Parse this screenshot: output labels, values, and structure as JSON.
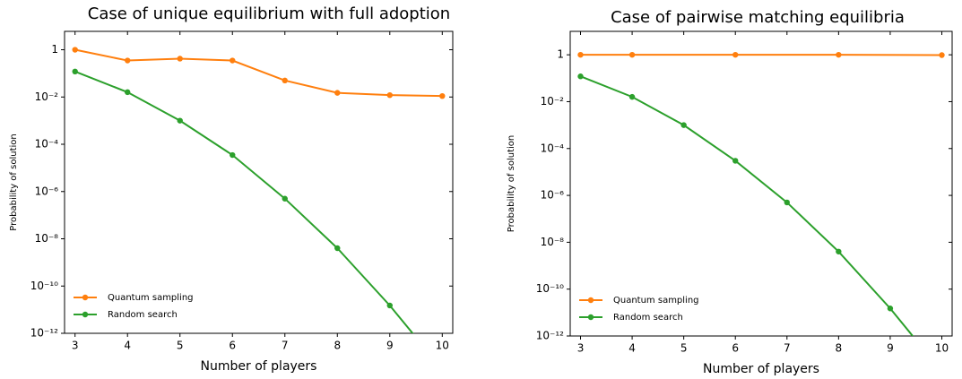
{
  "chart_data": [
    {
      "type": "line",
      "title": "Case of unique equilibrium with full adoption",
      "xlabel": "Number of players",
      "ylabel": "Probability of solution",
      "log_y": true,
      "legend": "lower left",
      "xlim": [
        2.8,
        10.2
      ],
      "ylim": [
        1e-12,
        6
      ],
      "xticks": [
        3,
        4,
        5,
        6,
        7,
        8,
        9,
        10
      ],
      "yticks": [
        {
          "value": 1e-12,
          "label": "10⁻¹²"
        },
        {
          "value": 1e-10,
          "label": "10⁻¹⁰"
        },
        {
          "value": 1e-08,
          "label": "10⁻⁸"
        },
        {
          "value": 1e-06,
          "label": "10⁻⁶"
        },
        {
          "value": 0.0001,
          "label": "10⁻⁴"
        },
        {
          "value": 0.01,
          "label": "10⁻²"
        },
        1
      ],
      "series": [
        {
          "name": "Quantum sampling",
          "color": "#ff7f0e",
          "x": [
            3,
            4,
            5,
            6,
            7,
            8,
            9,
            10
          ],
          "values": [
            1,
            0.35,
            0.42,
            0.35,
            0.05,
            0.015,
            0.012,
            0.011
          ]
        },
        {
          "name": "Random search",
          "color": "#2ca02c",
          "x": [
            3,
            4,
            5,
            6,
            7,
            8,
            9,
            10
          ],
          "values": [
            0.12,
            0.016,
            0.001,
            3.5e-05,
            5e-07,
            4e-09,
            1.5e-11,
            3e-14
          ]
        }
      ]
    },
    {
      "type": "line",
      "title": "Case of pairwise matching equilibria",
      "xlabel": "Number of players",
      "ylabel": "Probability of solution",
      "log_y": true,
      "legend": "lower left",
      "xlim": [
        2.8,
        10.2
      ],
      "ylim": [
        1e-12,
        10
      ],
      "xticks": [
        3,
        4,
        5,
        6,
        7,
        8,
        9,
        10
      ],
      "yticks": [
        {
          "value": 1e-12,
          "label": "10⁻¹²"
        },
        {
          "value": 1e-10,
          "label": "10⁻¹⁰"
        },
        {
          "value": 1e-08,
          "label": "10⁻⁸"
        },
        {
          "value": 1e-06,
          "label": "10⁻⁶"
        },
        {
          "value": 0.0001,
          "label": "10⁻⁴"
        },
        {
          "value": 0.01,
          "label": "10⁻²"
        },
        1
      ],
      "series": [
        {
          "name": "Quantum sampling",
          "color": "#ff7f0e",
          "x": [
            3,
            4,
            6,
            8,
            10
          ],
          "values": [
            1,
            1,
            1,
            1,
            0.97
          ]
        },
        {
          "name": "Random search",
          "color": "#2ca02c",
          "x": [
            3,
            4,
            5,
            6,
            7,
            8,
            9,
            10
          ],
          "values": [
            0.12,
            0.016,
            0.001,
            3e-05,
            5e-07,
            4e-09,
            1.5e-11,
            3e-14
          ]
        }
      ]
    }
  ]
}
